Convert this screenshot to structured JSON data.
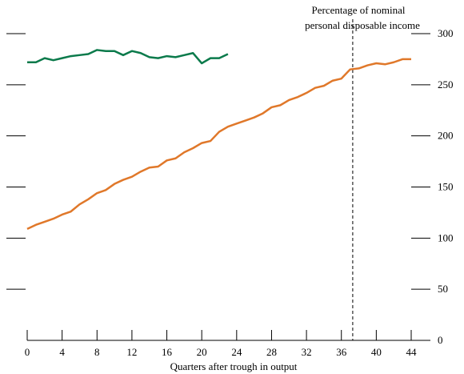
{
  "chart_data": {
    "type": "line",
    "title": "",
    "xlabel": "Quarters after trough in output",
    "ylabel_right": "Percentage of nominal personal disposable income",
    "ylabel_right_lines": [
      "Percentage of nominal",
      "personal disposable income"
    ],
    "xlim": [
      0,
      44
    ],
    "ylim_right": [
      0,
      300
    ],
    "x_ticks": [
      0,
      4,
      8,
      12,
      16,
      20,
      24,
      28,
      32,
      36,
      40,
      44
    ],
    "y_right_ticks": [
      0,
      50,
      100,
      150,
      200,
      250,
      300
    ],
    "left_axis_tick_count": 6,
    "vline_x": 37.3,
    "series": [
      {
        "color": "#0b7a4b",
        "x": [
          0,
          1,
          2,
          3,
          4,
          5,
          6,
          7,
          8,
          9,
          10,
          11,
          12,
          13,
          14,
          15,
          16,
          17,
          18,
          19,
          20,
          21,
          22,
          23
        ],
        "values": [
          272,
          272,
          276,
          274,
          276,
          278,
          279,
          280,
          284,
          283,
          283,
          279,
          283,
          281,
          277,
          276,
          278,
          277,
          279,
          281,
          271,
          276,
          276,
          280
        ]
      },
      {
        "color": "#e0782a",
        "x": [
          0,
          1,
          2,
          3,
          4,
          5,
          6,
          7,
          8,
          9,
          10,
          11,
          12,
          13,
          14,
          15,
          16,
          17,
          18,
          19,
          20,
          21,
          22,
          23,
          24,
          25,
          26,
          27,
          28,
          29,
          30,
          31,
          32,
          33,
          34,
          35,
          36,
          37,
          38,
          39,
          40,
          41,
          42,
          43,
          44
        ],
        "values": [
          109,
          113,
          116,
          119,
          123,
          126,
          133,
          138,
          144,
          147,
          153,
          157,
          160,
          165,
          169,
          170,
          176,
          178,
          184,
          188,
          193,
          195,
          204,
          209,
          212,
          215,
          218,
          222,
          228,
          230,
          235,
          238,
          242,
          247,
          249,
          254,
          256,
          265,
          266,
          269,
          271,
          270,
          272,
          275,
          275
        ]
      }
    ]
  }
}
